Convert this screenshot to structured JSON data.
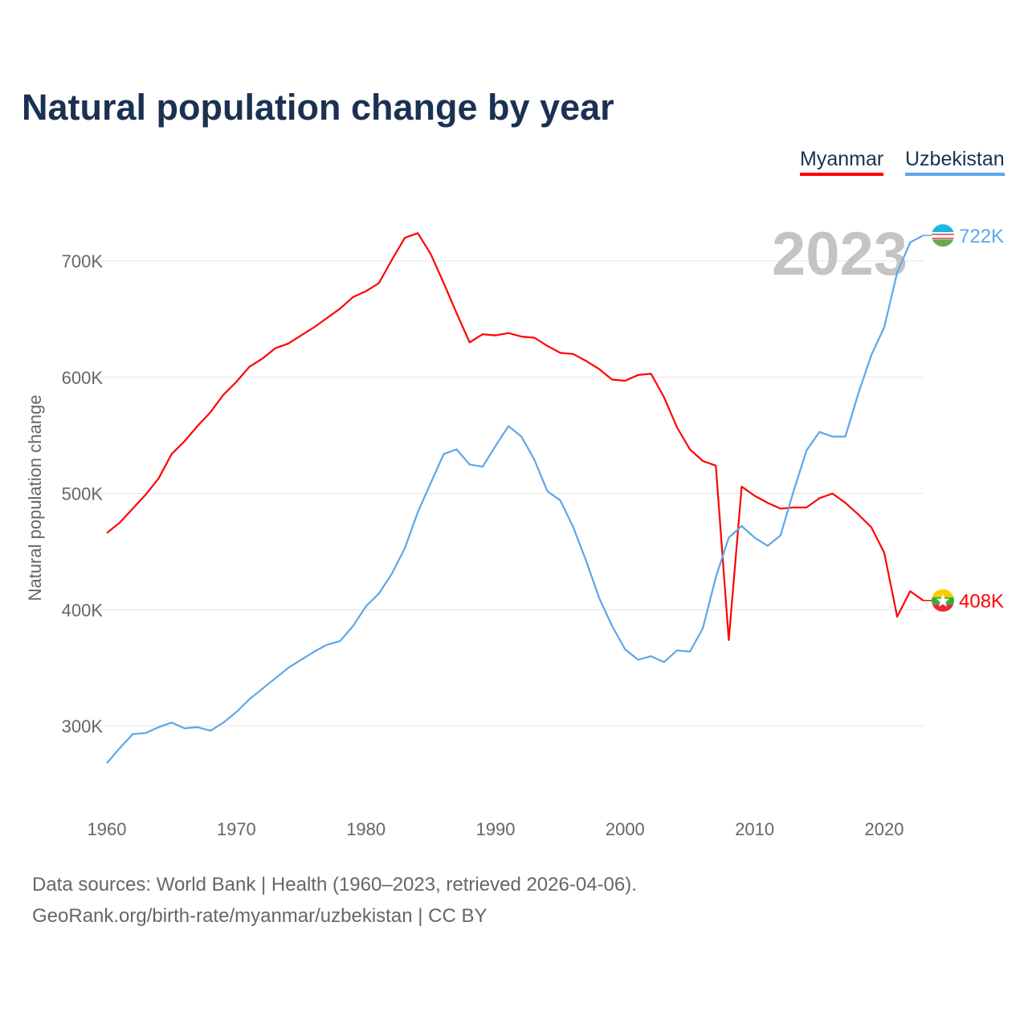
{
  "title": "Natural population change by year",
  "legend": [
    {
      "label": "Myanmar",
      "color": "#ff0000"
    },
    {
      "label": "Uzbekistan",
      "color": "#5ea6ea"
    }
  ],
  "year_label": "2023",
  "footer": {
    "line1": "Data sources: World Bank | Health (1960–2023, retrieved 2026-04-06).",
    "line2": "GeoRank.org/birth-rate/myanmar/uzbekistan | CC BY"
  },
  "chart_data": {
    "type": "line",
    "title": "Natural population change by year",
    "xlabel": "",
    "ylabel": "Natural population change",
    "xlim": [
      1960,
      2023
    ],
    "ylim": [
      240000,
      740000
    ],
    "xticks": [
      1960,
      1970,
      1980,
      1990,
      2000,
      2010,
      2020
    ],
    "xtick_labels": [
      "1960",
      "1970",
      "1980",
      "1990",
      "2000",
      "2010",
      "2020"
    ],
    "yticks": [
      300000,
      400000,
      500000,
      600000,
      700000
    ],
    "ytick_labels": [
      "300K",
      "400K",
      "500K",
      "600K",
      "700K"
    ],
    "grid": true,
    "legend_position": "top-right",
    "x": [
      1960,
      1961,
      1962,
      1963,
      1964,
      1965,
      1966,
      1967,
      1968,
      1969,
      1970,
      1971,
      1972,
      1973,
      1974,
      1975,
      1976,
      1977,
      1978,
      1979,
      1980,
      1981,
      1982,
      1983,
      1984,
      1985,
      1986,
      1987,
      1988,
      1989,
      1990,
      1991,
      1992,
      1993,
      1994,
      1995,
      1996,
      1997,
      1998,
      1999,
      2000,
      2001,
      2002,
      2003,
      2004,
      2005,
      2006,
      2007,
      2008,
      2009,
      2010,
      2011,
      2012,
      2013,
      2014,
      2015,
      2016,
      2017,
      2018,
      2019,
      2020,
      2021,
      2022,
      2023
    ],
    "series": [
      {
        "name": "Myanmar",
        "color": "#ff0000",
        "end_label": "408K",
        "values": [
          466,
          475,
          487,
          499,
          513,
          534,
          545,
          558,
          570,
          585,
          596,
          609,
          616,
          625,
          629,
          636,
          643,
          651,
          659,
          669,
          674,
          681,
          701,
          720,
          724,
          706,
          681,
          655,
          630,
          637,
          636,
          638,
          635,
          634,
          627,
          621,
          620,
          614,
          607,
          598,
          597,
          602,
          603,
          583,
          557,
          538,
          528,
          524,
          374,
          506,
          498,
          492,
          487,
          488,
          488,
          496,
          500,
          492,
          482,
          471,
          449,
          394,
          416,
          408
        ]
      },
      {
        "name": "Uzbekistan",
        "color": "#5ea6ea",
        "end_label": "722K",
        "values": [
          268,
          281,
          293,
          294,
          299,
          303,
          298,
          299,
          296,
          303,
          312,
          323,
          332,
          341,
          350,
          357,
          364,
          370,
          373,
          386,
          403,
          414,
          431,
          453,
          484,
          509,
          534,
          538,
          525,
          523,
          541,
          558,
          549,
          529,
          502,
          494,
          471,
          442,
          410,
          386,
          366,
          357,
          360,
          355,
          365,
          364,
          384,
          428,
          462,
          472,
          462,
          455,
          464,
          502,
          537,
          553,
          549,
          549,
          586,
          619,
          643,
          690,
          716,
          722
        ]
      }
    ],
    "value_unit": "thousands"
  }
}
